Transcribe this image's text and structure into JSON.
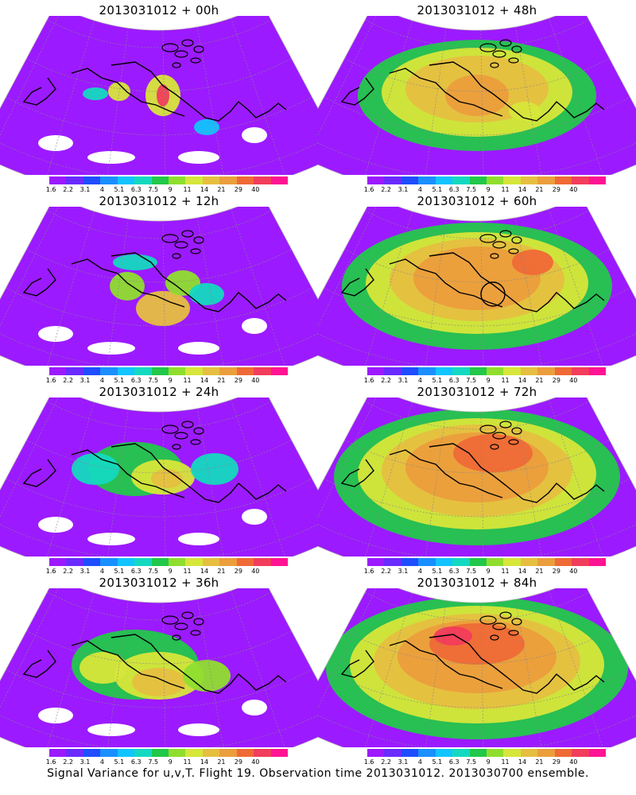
{
  "panels": [
    {
      "title": "2013031012 + 00h",
      "stage": 0
    },
    {
      "title": "2013031012 + 48h",
      "stage": 4
    },
    {
      "title": "2013031012 + 12h",
      "stage": 1
    },
    {
      "title": "2013031012 + 60h",
      "stage": 5,
      "circle": true
    },
    {
      "title": "2013031012 + 24h",
      "stage": 2
    },
    {
      "title": "2013031012 + 72h",
      "stage": 6
    },
    {
      "title": "2013031012 + 36h",
      "stage": 3
    },
    {
      "title": "2013031012 + 84h",
      "stage": 7
    }
  ],
  "colorbar": {
    "labels": [
      "1.6",
      "2.2",
      "3.1",
      "4",
      "5.1",
      "6.3",
      "7.5",
      "9",
      "11",
      "14",
      "21",
      "29",
      "40"
    ],
    "colors": [
      "#9c1aff",
      "#6a2bff",
      "#1f4dff",
      "#1a8fff",
      "#12c4ff",
      "#14d9c0",
      "#22c84a",
      "#8fde2e",
      "#d7e63a",
      "#e6bf40",
      "#eb9e3c",
      "#ef6a36",
      "#f23d5c",
      "#ff1493"
    ]
  },
  "footer": "Signal Variance for u,v,T. Flight 19. Observation time 2013031012. 2013030700 ensemble."
}
